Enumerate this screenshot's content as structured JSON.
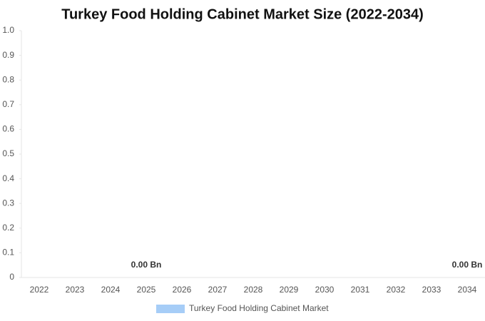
{
  "chart_data": {
    "type": "bar",
    "title": "Turkey Food Holding Cabinet Market Size (2022-2034)",
    "categories": [
      "2022",
      "2023",
      "2024",
      "2025",
      "2026",
      "2027",
      "2028",
      "2029",
      "2030",
      "2031",
      "2032",
      "2033",
      "2034"
    ],
    "series": [
      {
        "name": "Turkey Food Holding Cabinet Market",
        "color": "#a6cdf7",
        "values": [
          0,
          0,
          0,
          0,
          0,
          0,
          0,
          0,
          0,
          0,
          0,
          0,
          0
        ],
        "value_labels": [
          null,
          null,
          null,
          "0.00 Bn",
          null,
          null,
          null,
          null,
          null,
          null,
          null,
          null,
          "0.00 Bn"
        ]
      }
    ],
    "ylim": [
      0,
      1
    ],
    "yticks": [
      0,
      0.1,
      0.2,
      0.3,
      0.4,
      0.5,
      0.6,
      0.7,
      0.8,
      0.9,
      {
        "value": 1,
        "label": "1.0"
      }
    ],
    "grid": false,
    "legend": "bottom"
  }
}
